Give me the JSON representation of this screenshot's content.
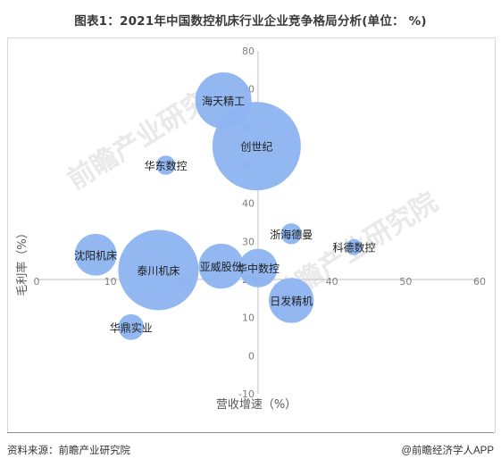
{
  "title": "图表1：2021年中国数控机床行业企业竞争格局分析(单位：  %)",
  "source": "资料来源：前瞻产业研究院",
  "brand": "@前瞻经济学人APP",
  "watermark": "前瞻产业研究院",
  "colors": {
    "bubble": "#8db4f0",
    "axis": "#bfbfbf",
    "tick": "#7f7f7f"
  },
  "chart_data": {
    "type": "scatter",
    "bubble": true,
    "xlabel": "营收增速（%）",
    "ylabel": "毛利率（%）",
    "xlim": [
      0,
      60
    ],
    "ylim": [
      -10,
      80
    ],
    "x_ticks": [
      0,
      10,
      20,
      30,
      40,
      50,
      60
    ],
    "y_ticks": [
      -10,
      0,
      10,
      20,
      30,
      40,
      50,
      60,
      70,
      80
    ],
    "grid": false,
    "points": [
      {
        "name": "海天精工",
        "x": 25.3,
        "y": 67.0,
        "r": 3.5
      },
      {
        "name": "创世纪",
        "x": 29.8,
        "y": 55.0,
        "r": 5.5
      },
      {
        "name": "华东数控",
        "x": 17.5,
        "y": 50.0,
        "r": 1.2
      },
      {
        "name": "浙海德曼",
        "x": 34.5,
        "y": 32.0,
        "r": 1.3
      },
      {
        "name": "科德数控",
        "x": 43.0,
        "y": 28.5,
        "r": 1.0
      },
      {
        "name": "沈阳机床",
        "x": 8.0,
        "y": 26.5,
        "r": 2.6
      },
      {
        "name": "泰川机床",
        "x": 16.5,
        "y": 22.5,
        "r": 5.0
      },
      {
        "name": "亚威股份",
        "x": 25.0,
        "y": 23.5,
        "r": 2.8
      },
      {
        "name": "华中数控",
        "x": 30.0,
        "y": 23.0,
        "r": 2.4
      },
      {
        "name": "日发精机",
        "x": 34.5,
        "y": 14.5,
        "r": 2.8
      },
      {
        "name": "华鼎实业",
        "x": 12.8,
        "y": 7.5,
        "r": 1.6
      }
    ]
  }
}
